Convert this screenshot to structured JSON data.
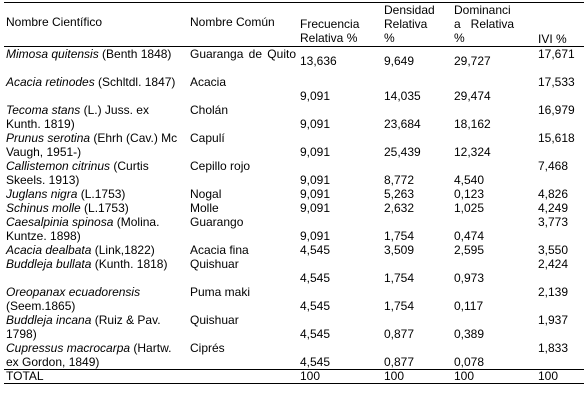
{
  "headers": {
    "col1": "Nombre Científico",
    "col2": "Nombre Común",
    "col3_l1": "Frecuencia",
    "col3_l2": "Relativa %",
    "col4_l1": "Densidad",
    "col4_l2": "Relativa",
    "col4_l3": "%",
    "col5_l1": "Dominanci",
    "col5_l2": "a   Relativa",
    "col5_l3": "%",
    "col6": "IVI %"
  },
  "rows": [
    {
      "sci_it": "Mimosa quitensis",
      "sci_rest": "  (Benth 1848)",
      "common": "Guaranga    de Quito",
      "fr": "13,636",
      "dr": "9,649",
      "dom": "29,727",
      "ivi": "17,671"
    },
    {
      "sci_it": "Acacia retinodes",
      "sci_rest": " (Schltdl. 1847)",
      "common": "Acacia",
      "fr": "9,091",
      "dr": "14,035",
      "dom": "29,474",
      "ivi": "17,533"
    },
    {
      "sci_it": "Tecoma stans",
      "sci_rest": " (L.) Juss. ex Kunth. 1819)",
      "common": "Cholán",
      "fr": "9,091",
      "dr": "23,684",
      "dom": "18,162",
      "ivi": "16,979"
    },
    {
      "sci_it": "Prunus serotina",
      "sci_rest": " (Ehrh (Cav.) Mc Vaugh, 1951-)",
      "common": "Capulí",
      "fr": "9,091",
      "dr": "25,439",
      "dom": "12,324",
      "ivi": "15,618"
    },
    {
      "sci_it": "Callistemon citrinus",
      "sci_rest": " (Curtis Skeels. 1913)",
      "common": "Cepillo rojo",
      "fr": "9,091",
      "dr": "8,772",
      "dom": "4,540",
      "ivi": "7,468"
    },
    {
      "sci_it": "Juglans nigra",
      "sci_rest": " (L.1753)",
      "common": "Nogal",
      "fr": "9,091",
      "dr": "5,263",
      "dom": "0,123",
      "ivi": "4,826"
    },
    {
      "sci_it": " Schinus molle",
      "sci_rest": " (L.1753)",
      "common": "Molle",
      "fr": "9,091",
      "dr": "2,632",
      "dom": "1,025",
      "ivi": "4,249"
    },
    {
      "sci_it": "Caesalpinia  spinosa",
      "sci_rest": " (Molina. Kuntze. 1898)",
      "common": "Guarango",
      "fr": "9,091",
      "dr": "1,754",
      "dom": "0,474",
      "ivi": "3,773"
    },
    {
      "sci_it": "Acacia dealbata",
      "sci_rest": " (Link,1822)",
      "common": "Acacia fina",
      "fr": "4,545",
      "dr": "3,509",
      "dom": "2,595",
      "ivi": "3,550"
    },
    {
      "sci_it": "Buddleja bullata",
      "sci_rest": " (Kunth. 1818)",
      "common": "Quishuar",
      "fr": "4,545",
      "dr": "1,754",
      "dom": "0,973",
      "ivi": "2,424"
    },
    {
      "sci_it": "Oreopanax ecuadorensis",
      "sci_rest": " (Seem.1865)",
      "common": "Puma maki",
      "fr": "4,545",
      "dr": "1,754",
      "dom": "0,117",
      "ivi": "2,139"
    },
    {
      "sci_it": "Buddleja incana",
      "sci_rest": " (Ruiz & Pav. 1798)",
      "common": "Quishuar",
      "fr": "4,545",
      "dr": "0,877",
      "dom": "0,389",
      "ivi": "1,937"
    },
    {
      "sci_it": "Cupressus macrocarpa",
      "sci_rest": " (Hartw. ex Gordon, 1849)",
      "common": "Ciprés",
      "fr": "4,545",
      "dr": "0,877",
      "dom": "0,078",
      "ivi": "1,833"
    }
  ],
  "total": {
    "label": "TOTAL",
    "fr": "100",
    "dr": "100",
    "dom": "100",
    "ivi": "100"
  }
}
